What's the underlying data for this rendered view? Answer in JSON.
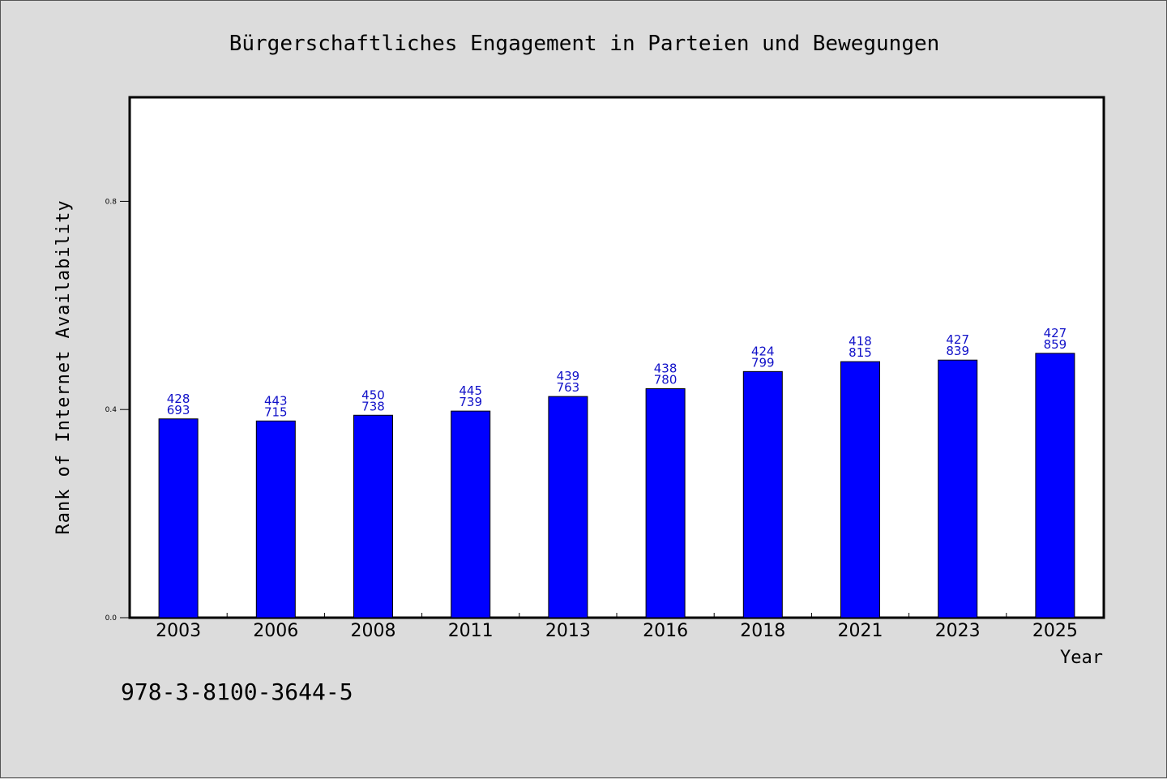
{
  "chart_data": {
    "type": "bar",
    "title": "Bürgerschaftliches Engagement in Parteien und Bewegungen",
    "xlabel": "Year",
    "ylabel": "Rank of Internet Availability",
    "categories": [
      "2003",
      "2006",
      "2008",
      "2011",
      "2013",
      "2016",
      "2018",
      "2021",
      "2023",
      "2025"
    ],
    "values": [
      0.382,
      0.378,
      0.389,
      0.397,
      0.425,
      0.44,
      0.473,
      0.492,
      0.495,
      0.508
    ],
    "data_labels": [
      [
        "428",
        "693"
      ],
      [
        "443",
        "715"
      ],
      [
        "450",
        "738"
      ],
      [
        "445",
        "739"
      ],
      [
        "439",
        "763"
      ],
      [
        "438",
        "780"
      ],
      [
        "424",
        "799"
      ],
      [
        "418",
        "815"
      ],
      [
        "427",
        "839"
      ],
      [
        "427",
        "859"
      ]
    ],
    "ylim": [
      0,
      1.0
    ],
    "yticks": [
      "0.0",
      "0.4",
      "0.8"
    ],
    "grid": false,
    "bar_color": "#0000ff",
    "label_color": "#1010c8"
  },
  "footer": {
    "isbn": "978-3-8100-3644-5"
  }
}
